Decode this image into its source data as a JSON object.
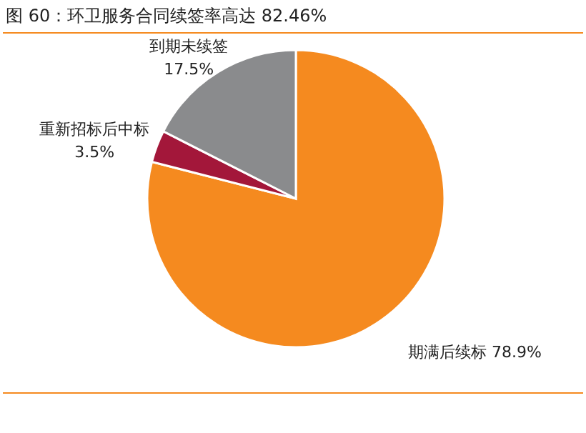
{
  "chart_data": {
    "type": "pie",
    "title": "图 60：环卫服务合同续签率高达 82.46%",
    "categories": [
      "期满后续标",
      "重新招标后中标",
      "到期未续签"
    ],
    "values": [
      78.9,
      3.5,
      17.5
    ],
    "colors": [
      "#f58a1f",
      "#a3173a",
      "#8a8b8d"
    ],
    "value_labels": [
      "78.9%",
      "3.5%",
      "17.5%"
    ]
  }
}
